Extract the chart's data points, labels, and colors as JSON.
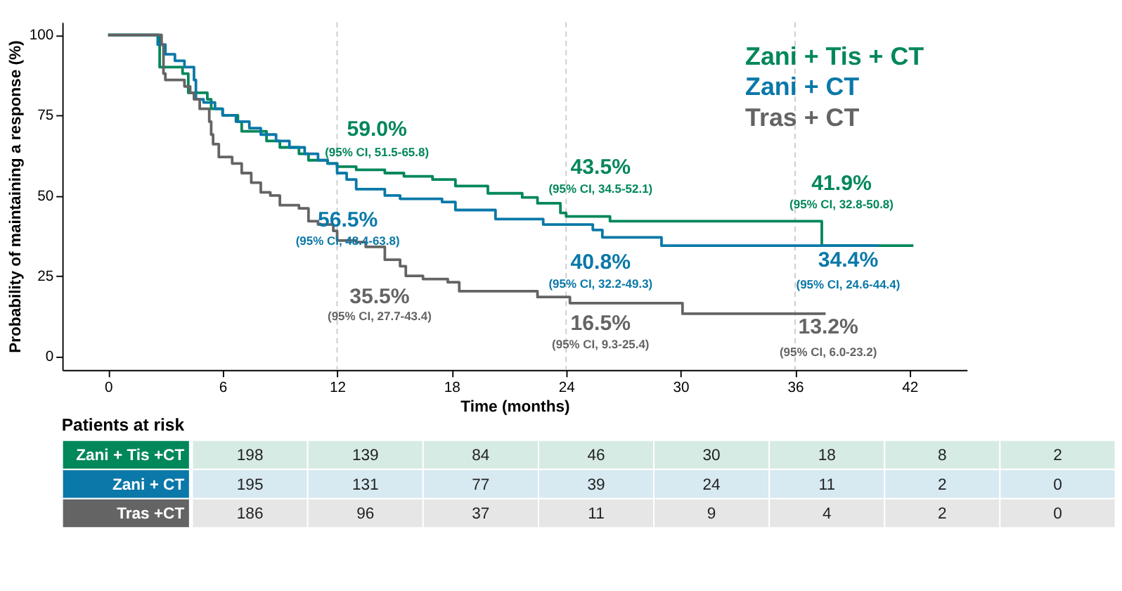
{
  "chart_data": [
    {
      "type": "step",
      "xlabel": "Time (months)",
      "ylabel": "Probability of maintaining a response (%)",
      "xlim": [
        -2.4,
        45
      ],
      "ylim": [
        -4.3,
        104
      ],
      "xticks": [
        0,
        6,
        12,
        18,
        24,
        30,
        36,
        42
      ],
      "yticks": [
        0,
        25,
        50,
        75,
        100
      ],
      "grid": false,
      "legend": "top right",
      "series": [
        {
          "name": "Zani + Tis + CT",
          "color": "#00875a",
          "x": [
            0,
            2.6,
            2.7,
            3.9,
            4.2,
            5.2,
            5.4,
            6.0,
            6.8,
            7.0,
            8.0,
            8.3,
            9.0,
            10.0,
            10.5,
            11.5,
            12.0,
            13.0,
            14.5,
            15.5,
            17.0,
            18.2,
            19.9,
            21.7,
            22.5,
            23.7,
            24.0,
            26.3,
            37.4,
            42.2
          ],
          "values": [
            100,
            100,
            90,
            88,
            82,
            80,
            77,
            75,
            73,
            70,
            70,
            67,
            65,
            63,
            61,
            60,
            59,
            58,
            57,
            56,
            55,
            53,
            50.7,
            49.4,
            47.6,
            44.6,
            43.5,
            42,
            34.4,
            34.4
          ]
        },
        {
          "name": "Zani + CT",
          "color": "#0a78a8",
          "x": [
            0,
            2.3,
            2.6,
            3.0,
            3.5,
            4.0,
            4.5,
            4.6,
            5.0,
            5.6,
            6.0,
            6.7,
            7.4,
            8.0,
            8.8,
            9.5,
            10.3,
            11.0,
            11.5,
            12.0,
            12.5,
            13.0,
            14.5,
            15.3,
            17.5,
            18.2,
            20.3,
            22.8,
            25.4,
            25.9,
            29.0,
            40.4
          ],
          "values": [
            100,
            100,
            97,
            94,
            92,
            90,
            86,
            80,
            79,
            77,
            75,
            73,
            71,
            69,
            67,
            65,
            63,
            61,
            60,
            57,
            55,
            52,
            50,
            49,
            48,
            45.5,
            42.7,
            41,
            39.3,
            37,
            34.4,
            34.4
          ]
        },
        {
          "name": "Tras + CT",
          "color": "#646464",
          "x": [
            0,
            2.5,
            2.8,
            2.9,
            3.0,
            4.0,
            4.3,
            4.5,
            4.8,
            5.3,
            5.4,
            5.5,
            5.8,
            6.5,
            7.0,
            7.5,
            8.0,
            8.5,
            9.0,
            10.0,
            10.5,
            11.0,
            11.8,
            12.0,
            13.0,
            13.5,
            14.5,
            15.3,
            15.6,
            16.5,
            17.8,
            18.4,
            22.5,
            24.2,
            30.1,
            37.6
          ],
          "values": [
            100,
            100,
            97,
            88,
            86,
            84,
            82,
            80,
            77,
            73,
            69,
            66,
            62,
            60,
            57,
            54,
            51,
            50,
            47,
            46,
            42,
            41,
            39,
            36,
            35.5,
            34,
            30,
            28,
            25,
            24,
            23,
            20.2,
            18.4,
            16.5,
            13.2,
            13.2
          ]
        }
      ],
      "ref_lines": [
        {
          "axis": "x",
          "value": 12,
          "color": "#cccccc",
          "line_style": "dashed"
        },
        {
          "axis": "x",
          "value": 24,
          "color": "#cccccc",
          "line_style": "dashed"
        },
        {
          "axis": "x",
          "value": 36,
          "color": "#cccccc",
          "line_style": "dashed"
        }
      ],
      "annotations": [
        {
          "text": "59.0%",
          "x": 12,
          "y": 59.0
        },
        "(95% CI, 51.5-65.8)",
        {
          "text": "56.5%",
          "x": 12,
          "y": 56.5
        },
        "(95% CI, 48.4-63.8)",
        {
          "text": "35.5%",
          "x": 12,
          "y": 35.5
        },
        "(95% CI, 27.7-43.4)",
        {
          "text": "43.5%",
          "x": 24,
          "y": 43.5
        },
        "(95% CI, 34.5-52.1)",
        {
          "text": "40.8%",
          "x": 24,
          "y": 40.8
        },
        "(95% CI, 32.2-49.3)",
        {
          "text": "16.5%",
          "x": 24,
          "y": 16.5
        },
        "(95% CI, 9.3-25.4)",
        {
          "text": "41.9%",
          "x": 36,
          "y": 41.9
        },
        "(95% CI, 32.8-50.8)",
        {
          "text": "34.4%",
          "x": 36,
          "y": 34.4
        },
        "(95% CI, 24.6-44.4)",
        {
          "text": "13.2%",
          "x": 36,
          "y": 13.2
        },
        "(95% CI, 6.0-23.2)"
      ]
    },
    {
      "type": "heatmap",
      "title": "Patients at risk",
      "categories": [
        null,
        null,
        null,
        null,
        null,
        null,
        null,
        null
      ],
      "y_categories": [
        "Zani + Tis +CT",
        "Zani + CT",
        "Tras +CT"
      ],
      "colors": [
        "#00875a",
        "#0a78a8",
        "#646464"
      ],
      "data_labels": true,
      "cells": [
        [
          198,
          139,
          84,
          46,
          30,
          18,
          8,
          2
        ],
        [
          195,
          131,
          77,
          39,
          24,
          11,
          2,
          0
        ],
        [
          186,
          96,
          37,
          11,
          9,
          4,
          2,
          0
        ]
      ]
    }
  ]
}
